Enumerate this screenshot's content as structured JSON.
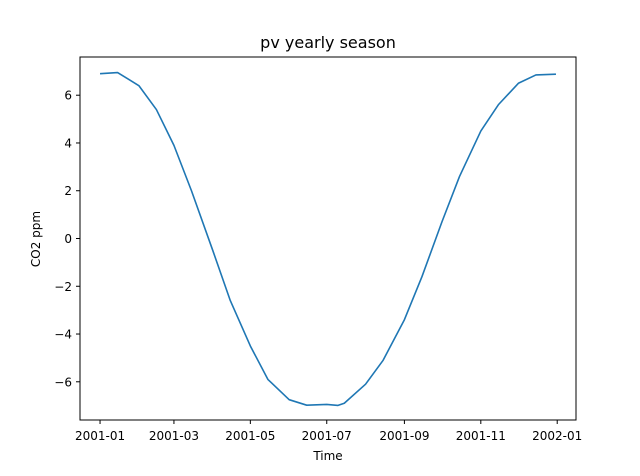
{
  "chart_data": {
    "type": "line",
    "title": "pv yearly season",
    "xlabel": "Time",
    "ylabel": "CO2 ppm",
    "x_ticks": [
      "2001-01",
      "2001-03",
      "2001-05",
      "2001-07",
      "2001-09",
      "2001-11",
      "2002-01"
    ],
    "y_ticks": [
      "6",
      "4",
      "2",
      "0",
      "−2",
      "−4",
      "−6"
    ],
    "ylim": [
      -7.6,
      7.6
    ],
    "xlim": [
      "2000-12-16",
      "2002-01-16"
    ],
    "grid": false,
    "line_color": "#1f77b4",
    "series": [
      {
        "x": [
          "2001-01-01",
          "2001-01-15",
          "2001-02-01",
          "2001-02-15",
          "2001-03-01",
          "2001-03-15",
          "2001-04-01",
          "2001-04-15",
          "2001-05-01",
          "2001-05-15",
          "2001-06-01",
          "2001-06-15",
          "2001-07-01",
          "2001-07-10",
          "2001-07-15",
          "2001-08-01",
          "2001-08-15",
          "2001-09-01",
          "2001-09-15",
          "2001-10-01",
          "2001-10-15",
          "2001-11-01",
          "2001-11-15",
          "2001-12-01",
          "2001-12-15",
          "2001-12-31"
        ],
        "values": [
          6.9,
          6.95,
          6.4,
          5.4,
          3.9,
          2.0,
          -0.5,
          -2.6,
          -4.5,
          -5.9,
          -6.75,
          -6.98,
          -6.95,
          -6.99,
          -6.9,
          -6.1,
          -5.1,
          -3.4,
          -1.6,
          0.7,
          2.6,
          4.5,
          5.6,
          6.5,
          6.85,
          6.88
        ]
      }
    ]
  }
}
